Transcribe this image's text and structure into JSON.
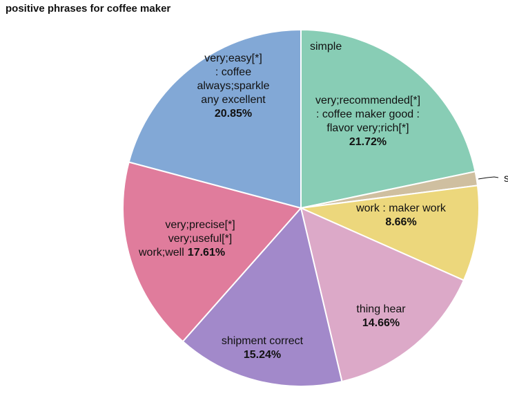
{
  "chart_data": {
    "type": "pie",
    "title": "positive phrases for coffee maker",
    "slices": [
      {
        "label": "simple very;recommended[*] : coffee maker good : flavor very;rich[*]",
        "lines": [
          "simple",
          "very;recommended[*]",
          ": coffee maker good :",
          "flavor very;rich[*]"
        ],
        "value": 21.72,
        "value_label": "21.72%",
        "color": "#88cdb5"
      },
      {
        "label": "s",
        "lines": [
          "s"
        ],
        "value": 1.26,
        "value_label": "",
        "color": "#cfbfa0"
      },
      {
        "label": "work : maker work",
        "lines": [
          "work : maker work"
        ],
        "value": 8.66,
        "value_label": "8.66%",
        "color": "#ecd77c"
      },
      {
        "label": "thing hear",
        "lines": [
          "thing hear"
        ],
        "value": 14.66,
        "value_label": "14.66%",
        "color": "#dca9c8"
      },
      {
        "label": "shipment correct",
        "lines": [
          "shipment correct"
        ],
        "value": 15.24,
        "value_label": "15.24%",
        "color": "#a289ca"
      },
      {
        "label": "very;precise[*] very;useful[*] work;well",
        "lines": [
          "very;precise[*]",
          "very;useful[*]",
          "work;well"
        ],
        "value": 17.61,
        "value_label": "17.61%",
        "color": "#e07c9c"
      },
      {
        "label": "very;easy[*] : coffee always;sparkle any excellent",
        "lines": [
          "very;easy[*]",
          ": coffee",
          "always;sparkle",
          "any excellent"
        ],
        "value": 20.85,
        "value_label": "20.85%",
        "color": "#82a8d6"
      }
    ]
  }
}
